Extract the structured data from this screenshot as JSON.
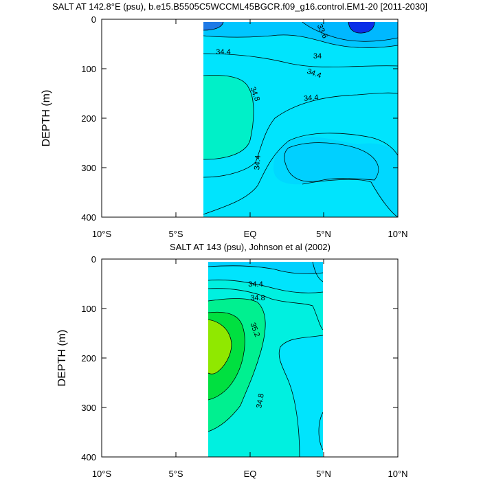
{
  "chart_data": [
    {
      "type": "contour",
      "title": "SALT AT 142.8°E (psu), b.e15.B5505C5WCCML45BGCR.f09_g16.control.EM1-20 [2011-2030]",
      "ylabel": "DEPTH (m)",
      "xlabel": "",
      "xlim": [
        -10,
        10
      ],
      "ylim": [
        400,
        0
      ],
      "data_extent_lat": [
        -3.1,
        10
      ],
      "x_ticks": [
        "10°S",
        "5°S",
        "EQ",
        "5°N",
        "10°N"
      ],
      "x_tick_values": [
        -10,
        -5,
        0,
        5,
        10
      ],
      "y_ticks": [
        "0",
        "100",
        "200",
        "300",
        "400"
      ],
      "y_tick_values": [
        0,
        100,
        200,
        300,
        400
      ],
      "contour_labels": [
        {
          "text": "33.6",
          "lat": 4.7,
          "depth": 25,
          "angle": 65
        },
        {
          "text": "34.4",
          "lat": -1.3,
          "depth": 64,
          "angle": 0
        },
        {
          "text": "34",
          "lat": 4.5,
          "depth": 72,
          "angle": 0
        },
        {
          "text": "34.4",
          "lat": 4.2,
          "depth": 108,
          "angle": 20
        },
        {
          "text": "34.8",
          "lat": 0.0,
          "depth": 152,
          "angle": 70
        },
        {
          "text": "34.4",
          "lat": 3.7,
          "depth": 158,
          "angle": -5
        },
        {
          "text": "34.4",
          "lat": 0.5,
          "depth": 290,
          "angle": -85
        }
      ]
    },
    {
      "type": "contour",
      "title": "SALT AT 143 (psu), Johnson et al (2002)",
      "ylabel": "DEPTH (m)",
      "xlabel": "",
      "xlim": [
        -10,
        10
      ],
      "ylim": [
        400,
        0
      ],
      "data_extent_lat": [
        -2.8,
        5
      ],
      "x_ticks": [
        "10°S",
        "5°S",
        "EQ",
        "5°N",
        "10°N"
      ],
      "x_tick_values": [
        -10,
        -5,
        0,
        5,
        10
      ],
      "y_ticks": [
        "0",
        "100",
        "200",
        "300",
        "400"
      ],
      "y_tick_values": [
        0,
        100,
        200,
        300,
        400
      ],
      "contour_labels": [
        {
          "text": "34.4",
          "lat": 0.5,
          "depth": 47,
          "angle": 0
        },
        {
          "text": "34.8",
          "lat": 0.5,
          "depth": 77,
          "angle": 0
        },
        {
          "text": "35.2",
          "lat": 0.3,
          "depth": 147,
          "angle": 70
        },
        {
          "text": "34.8",
          "lat": 0.9,
          "depth": 288,
          "angle": -80
        }
      ]
    }
  ]
}
